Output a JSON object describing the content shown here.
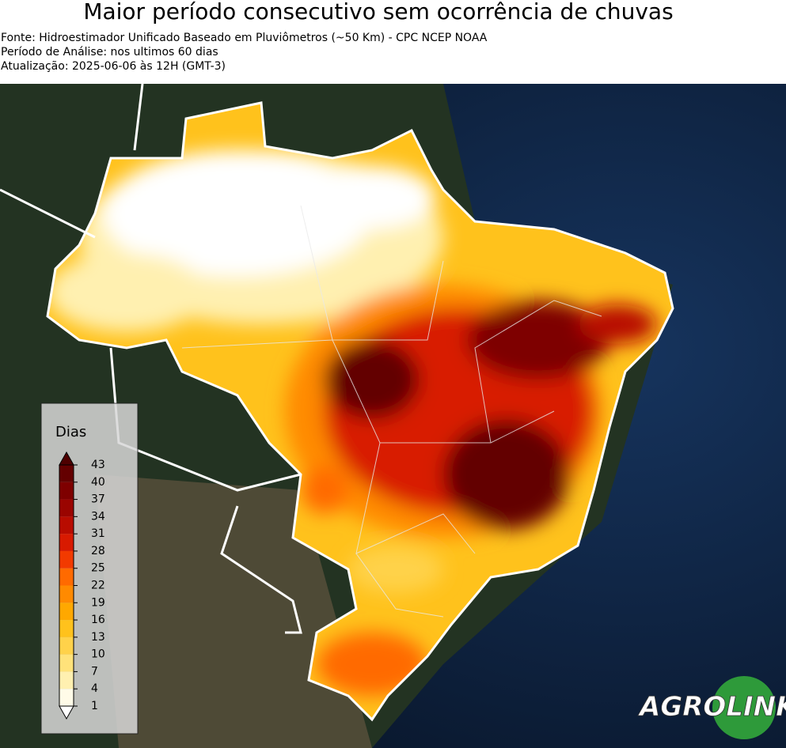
{
  "header": {
    "title": "Maior período consecutivo sem ocorrência de chuvas",
    "lines": [
      "Fonte: Hidroestimador Unificado Baseado em Pluviômetros (~50 Km) - CPC NCEP NOAA",
      "Período de Análise: nos ultimos 60 dias",
      "Atualização: 2025-06-06 às 12H (GMT-3)"
    ]
  },
  "legend": {
    "title": "Dias",
    "ticks": [
      1,
      4,
      7,
      10,
      13,
      16,
      19,
      22,
      25,
      28,
      31,
      34,
      37,
      40,
      43
    ],
    "colors": [
      "#fffbe8",
      "#fff0b0",
      "#ffe27a",
      "#ffd24a",
      "#ffc21c",
      "#ffa800",
      "#ff8a00",
      "#ff6a00",
      "#f23a00",
      "#d81a00",
      "#b80c00",
      "#9a0400",
      "#7e0000",
      "#640000"
    ],
    "under_color": "#ffffff",
    "over_color": "#4e0000"
  },
  "logo": {
    "part1": "AGRO",
    "part2": "LINK"
  }
}
